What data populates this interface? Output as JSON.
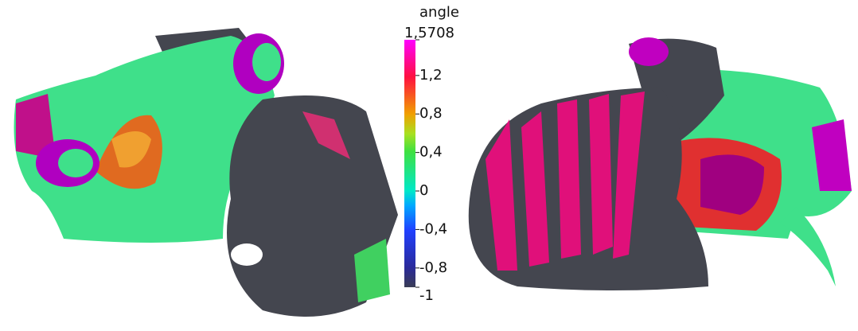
{
  "colorbar": {
    "title": "angle",
    "ticks": [
      {
        "value": 1.5708,
        "label": "1,5708"
      },
      {
        "value": 1.2,
        "label": "1,2"
      },
      {
        "value": 0.8,
        "label": "0,8"
      },
      {
        "value": 0.4,
        "label": "0,4"
      },
      0,
      {
        "value": -0.4,
        "label": "-0,4"
      },
      {
        "value": -0.8,
        "label": "-0,8"
      },
      -1
    ]
  }
}
